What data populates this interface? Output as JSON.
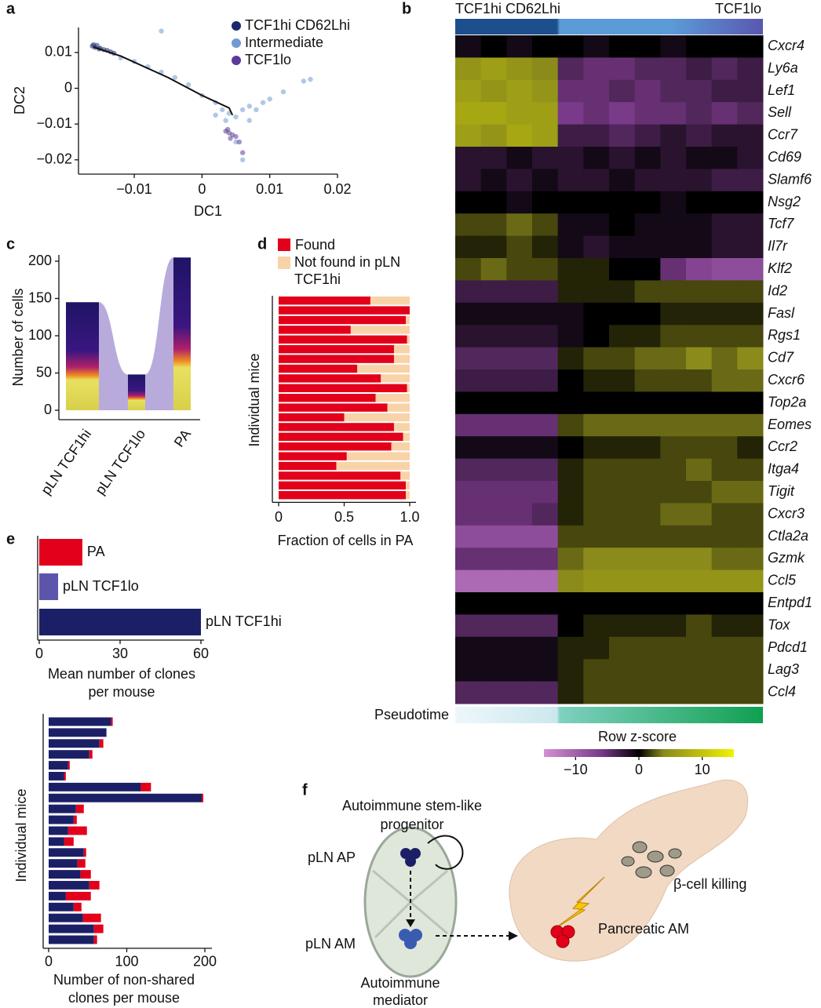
{
  "chart_data": [
    {
      "type": "scatter",
      "panel_label": "a",
      "xlabel": "DC1",
      "ylabel": "DC2",
      "xlim": [
        -0.018,
        0.02
      ],
      "ylim": [
        -0.024,
        0.017
      ],
      "xticks": [
        {
          "value": -0.01,
          "label": "−0.01"
        },
        0,
        0.01,
        0.02
      ],
      "yticks": [
        0.01,
        0,
        {
          "value": -0.01,
          "label": "−0.01"
        },
        {
          "value": -0.02,
          "label": "−0.02"
        }
      ],
      "series": [
        {
          "name": "TCF1hi CD62Lhi",
          "color": "#1c2a6b",
          "x": [
            -0.0162,
            -0.0158,
            -0.0155,
            -0.015,
            -0.0145,
            -0.014,
            -0.0135,
            -0.013,
            -0.016,
            -0.0152
          ],
          "y": [
            0.0118,
            0.0114,
            0.012,
            0.0112,
            0.0108,
            0.0106,
            0.0102,
            0.0098,
            0.0122,
            0.011
          ]
        },
        {
          "name": "Intermediate",
          "color": "#6f9bd1",
          "x": [
            -0.012,
            -0.01,
            -0.008,
            -0.006,
            -0.004,
            -0.002,
            0,
            0.002,
            0.003,
            0.004,
            0.005,
            0.006,
            0.007,
            0.008,
            0.009,
            0.01,
            0.012,
            0.015,
            0.016,
            -0.006,
            0.005,
            0.006,
            0.0035,
            0.007,
            0.002
          ],
          "y": [
            0.0085,
            0.0075,
            0.006,
            0.0045,
            0.003,
            0.001,
            -0.002,
            -0.004,
            -0.006,
            -0.007,
            -0.008,
            -0.006,
            -0.005,
            -0.006,
            -0.004,
            -0.003,
            -0.001,
            0.002,
            0.0025,
            0.016,
            -0.015,
            -0.02,
            -0.009,
            -0.009,
            -0.0075
          ]
        },
        {
          "name": "TCF1lo",
          "color": "#5b3b9a",
          "x": [
            0.0035,
            0.004,
            0.0045,
            0.005,
            0.0038,
            0.0042,
            0.0055,
            0.006
          ],
          "y": [
            -0.012,
            -0.0125,
            -0.013,
            -0.0135,
            -0.0115,
            -0.014,
            -0.015,
            -0.018
          ]
        }
      ],
      "trajectory": {
        "x": [
          -0.016,
          -0.012,
          -0.005,
          0.0,
          0.004,
          0.0045
        ],
        "y": [
          0.0115,
          0.009,
          0.003,
          -0.002,
          -0.0055,
          -0.0075
        ]
      }
    },
    {
      "type": "heatmap",
      "panel_label": "b",
      "header_left": "TCF1hi CD62Lhi",
      "header_right": "TCF1lo",
      "pseudotime_label": "Pseudotime",
      "colorbar_title": "Row z-score",
      "clim": [
        -15,
        15
      ],
      "cticks": [
        {
          "value": -10,
          "label": "−10"
        },
        0,
        10
      ],
      "genes": [
        "Cxcr4",
        "Ly6a",
        "Lef1",
        "Sell",
        "Ccr7",
        "Cd69",
        "Slamf6",
        "Nsg2",
        "Tcf7",
        "Il7r",
        "Klf2",
        "Id2",
        "Fasl",
        "Rgs1",
        "Cd7",
        "Cxcr6",
        "Top2a",
        "Eomes",
        "Ccr2",
        "Itga4",
        "Tigit",
        "Cxcr3",
        "Ctla2a",
        "Gzmk",
        "Ccl5",
        "Entpd1",
        "Tox",
        "Pdcd1",
        "Lag3",
        "Ccl4"
      ],
      "z": [
        [
          -1,
          0,
          -1,
          0,
          0,
          -1,
          0,
          0,
          -1,
          0,
          0,
          0
        ],
        [
          5,
          6,
          5,
          4,
          -4,
          -5,
          -5,
          -4,
          -4,
          -3,
          -4,
          -3
        ],
        [
          6,
          5,
          6,
          5,
          -5,
          -5,
          -4,
          -5,
          -4,
          -4,
          -3,
          -3
        ],
        [
          7,
          7,
          6,
          6,
          -6,
          -5,
          -6,
          -5,
          -5,
          -4,
          -5,
          -4
        ],
        [
          6,
          5,
          7,
          6,
          -3,
          -3,
          -4,
          -3,
          -2,
          -3,
          -2,
          -2
        ],
        [
          -2,
          -2,
          -1,
          -2,
          -2,
          -1,
          -2,
          -1,
          -2,
          -1,
          -1,
          -2
        ],
        [
          -2,
          -1,
          -2,
          -1,
          -2,
          -2,
          -1,
          -2,
          -2,
          -2,
          -3,
          -3
        ],
        [
          0,
          0,
          -1,
          0,
          0,
          0,
          0,
          0,
          -1,
          0,
          0,
          0
        ],
        [
          2,
          2,
          3,
          2,
          -1,
          -1,
          0,
          -1,
          -1,
          -1,
          -2,
          -2
        ],
        [
          1,
          1,
          2,
          1,
          -1,
          -2,
          -1,
          -1,
          -1,
          -1,
          -2,
          -2
        ],
        [
          2,
          3,
          2,
          2,
          1,
          1,
          0,
          0,
          -5,
          -7,
          -8,
          -8
        ],
        [
          -3,
          -3,
          -3,
          -3,
          1,
          1,
          1,
          2,
          2,
          2,
          2,
          2
        ],
        [
          -1,
          -1,
          -1,
          -1,
          -1,
          0,
          0,
          0,
          1,
          1,
          1,
          1
        ],
        [
          -2,
          -2,
          -2,
          -2,
          -1,
          0,
          1,
          1,
          2,
          2,
          2,
          2
        ],
        [
          -4,
          -4,
          -4,
          -4,
          1,
          2,
          2,
          3,
          3,
          4,
          3,
          4
        ],
        [
          -3,
          -3,
          -3,
          -3,
          0,
          1,
          1,
          2,
          2,
          2,
          3,
          3
        ],
        [
          0,
          0,
          0,
          0,
          0,
          0,
          0,
          0,
          0,
          0,
          0,
          0
        ],
        [
          -5,
          -5,
          -5,
          -5,
          2,
          3,
          3,
          3,
          3,
          3,
          3,
          3
        ],
        [
          -1,
          -1,
          -1,
          -1,
          0,
          1,
          1,
          1,
          2,
          2,
          2,
          1
        ],
        [
          -4,
          -4,
          -4,
          -4,
          1,
          2,
          2,
          2,
          2,
          3,
          2,
          2
        ],
        [
          -5,
          -5,
          -5,
          -5,
          1,
          2,
          2,
          2,
          2,
          2,
          3,
          3
        ],
        [
          -5,
          -5,
          -5,
          -4,
          1,
          2,
          2,
          2,
          3,
          3,
          2,
          2
        ],
        [
          -8,
          -8,
          -8,
          -8,
          2,
          2,
          2,
          2,
          2,
          2,
          2,
          2
        ],
        [
          -5,
          -5,
          -5,
          -5,
          3,
          4,
          4,
          4,
          4,
          4,
          3,
          3
        ],
        [
          -11,
          -11,
          -11,
          -11,
          4,
          5,
          5,
          5,
          5,
          5,
          5,
          5
        ],
        [
          0,
          0,
          0,
          0,
          0,
          0,
          0,
          0,
          0,
          0,
          0,
          0
        ],
        [
          -4,
          -4,
          -4,
          -4,
          0,
          1,
          1,
          1,
          1,
          2,
          1,
          1
        ],
        [
          -1,
          -1,
          -1,
          -1,
          1,
          1,
          2,
          2,
          2,
          2,
          2,
          2
        ],
        [
          -1,
          -1,
          -1,
          -1,
          1,
          2,
          2,
          2,
          2,
          2,
          2,
          2
        ],
        [
          -4,
          -4,
          -4,
          -4,
          1,
          2,
          2,
          2,
          2,
          2,
          2,
          2
        ]
      ]
    },
    {
      "type": "bar",
      "panel_label": "c",
      "ylabel": "Number of cells",
      "categories": [
        "pLN TCF1hi",
        "pLN TCF1lo",
        "PA"
      ],
      "values": [
        145,
        48,
        205
      ],
      "ylim": [
        0,
        210
      ],
      "yticks": [
        0,
        50,
        100,
        150,
        200
      ]
    },
    {
      "type": "stacked-barh",
      "panel_label": "d",
      "xlabel": "Fraction of cells in PA",
      "ylabel": "Individual mice",
      "xlim": [
        0,
        1
      ],
      "xticks": [
        0,
        0.5,
        {
          "value": 1,
          "label": "1.0"
        }
      ],
      "series": [
        {
          "name": "Found",
          "color": "#e3001b",
          "values": [
            0.7,
            1.0,
            0.97,
            0.55,
            0.98,
            0.88,
            0.88,
            0.6,
            0.78,
            0.98,
            0.74,
            0.83,
            0.5,
            0.88,
            0.95,
            0.86,
            0.52,
            0.44,
            0.93,
            0.97,
            0.97
          ]
        },
        {
          "name": "Not found in pLN TCF1hi",
          "color": "#f9d3a8",
          "values": [
            0.3,
            0.0,
            0.03,
            0.45,
            0.02,
            0.12,
            0.12,
            0.4,
            0.22,
            0.02,
            0.26,
            0.17,
            0.5,
            0.12,
            0.05,
            0.14,
            0.48,
            0.56,
            0.07,
            0.03,
            0.03
          ]
        }
      ]
    },
    {
      "type": "barh",
      "panel_label": "e",
      "xlabel": [
        "Mean number of clones",
        "per mouse"
      ],
      "categories": [
        "PA",
        "pLN TCF1lo",
        "pLN TCF1hi"
      ],
      "values": [
        16,
        7,
        60
      ],
      "colors": [
        "#e3001b",
        "#5d55ab",
        "#1b2066"
      ],
      "xlim": [
        0,
        60
      ],
      "xticks": [
        0,
        30,
        60
      ]
    },
    {
      "type": "stacked-barh",
      "xlabel": [
        "Number of non-shared",
        "clones per mouse"
      ],
      "ylabel": "Individual mice",
      "xlim": [
        0,
        200
      ],
      "xticks": [
        0,
        100,
        200
      ],
      "series": [
        {
          "color": "#1b2066",
          "values": [
            80,
            74,
            65,
            52,
            25,
            20,
            118,
            196,
            35,
            32,
            25,
            20,
            45,
            37,
            41,
            52,
            22,
            32,
            44,
            58,
            58
          ]
        },
        {
          "color": "#e3001b",
          "values": [
            2,
            0,
            5,
            4,
            2,
            2,
            13,
            2,
            10,
            4,
            24,
            12,
            3,
            10,
            13,
            13,
            32,
            10,
            23,
            12,
            4
          ]
        }
      ]
    }
  ],
  "diagram": {
    "panel_label": "f",
    "progenitor": [
      "Autoimmune stem-like",
      "progenitor"
    ],
    "pln_ap": "pLN AP",
    "pln_am": "pLN AM",
    "mediator": [
      "Autoimmune",
      "mediator"
    ],
    "killing": "β-cell killing",
    "pancreatic_am": "Pancreatic AM"
  }
}
